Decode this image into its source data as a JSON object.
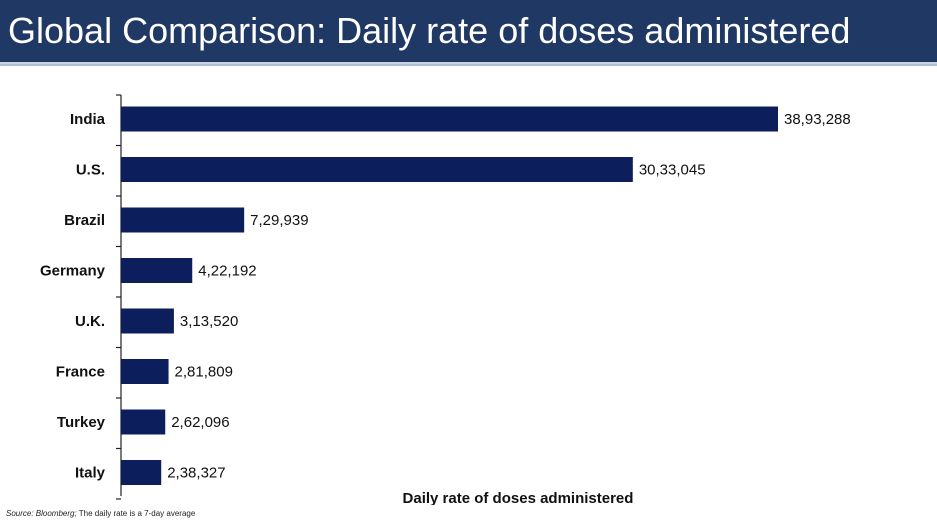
{
  "header": {
    "title": "Global Comparison: Daily rate of doses administered"
  },
  "colors": {
    "title_bar": "#1f3864",
    "bar": "#0c1e5b"
  },
  "chart_data": {
    "type": "bar",
    "orientation": "horizontal",
    "title": "",
    "xlabel": "Daily rate of doses administered",
    "ylabel": "",
    "grid": false,
    "categories": [
      "India",
      "U.S.",
      "Brazil",
      "Germany",
      "U.K.",
      "France",
      "Turkey",
      "Italy"
    ],
    "values": [
      3893288,
      3033045,
      729939,
      422192,
      313520,
      281809,
      262096,
      238327
    ],
    "value_labels": [
      "38,93,288",
      "30,33,045",
      "7,29,939",
      "4,22,192",
      "3,13,520",
      "2,81,809",
      "2,62,096",
      "2,38,327"
    ],
    "xlim": [
      0,
      4000000
    ]
  },
  "footer": {
    "source_prefix": "Source: Bloomberg;",
    "source_note": " The daily rate is a 7-day average"
  }
}
